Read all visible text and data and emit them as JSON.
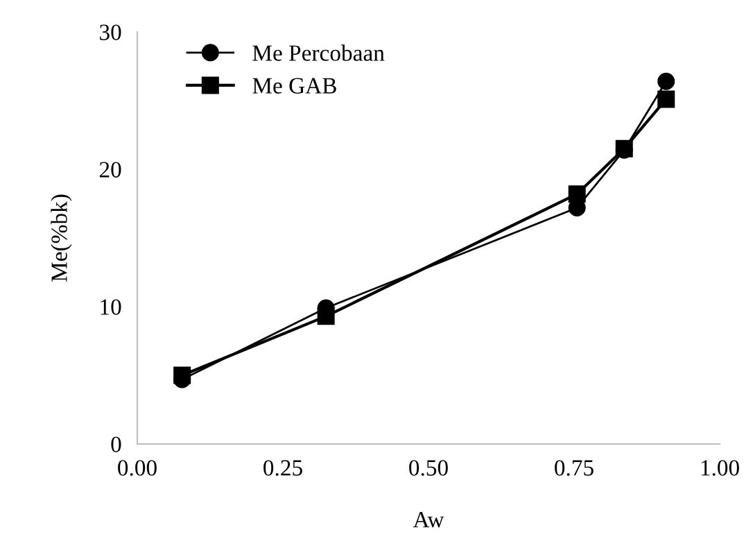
{
  "chart_data": {
    "type": "line",
    "xlabel": "Aw",
    "ylabel": "Me(%bk)",
    "x": [
      0.077,
      0.324,
      0.755,
      0.836,
      0.908
    ],
    "series": [
      {
        "name": "Me Percobaan",
        "color": "#000000",
        "values": [
          4.7,
          9.9,
          17.2,
          21.4,
          26.4
        ],
        "marker": "circle"
      },
      {
        "name": "Me GAB",
        "color": "#000000",
        "values": [
          5.0,
          9.3,
          18.2,
          21.5,
          25.1
        ],
        "marker": "square"
      }
    ],
    "xlim": [
      0,
      1
    ],
    "xticks": [
      {
        "value": 0,
        "label": "0.00"
      },
      {
        "value": 0.25,
        "label": "0.25"
      },
      {
        "value": 0.5,
        "label": "0.50"
      },
      {
        "value": 0.75,
        "label": "0.75"
      },
      {
        "value": 1,
        "label": "1.00"
      }
    ],
    "ylim": [
      0,
      30
    ],
    "yticks": [
      0,
      10,
      20,
      30
    ],
    "grid": false,
    "legend": "top left",
    "line_style": "solid"
  }
}
